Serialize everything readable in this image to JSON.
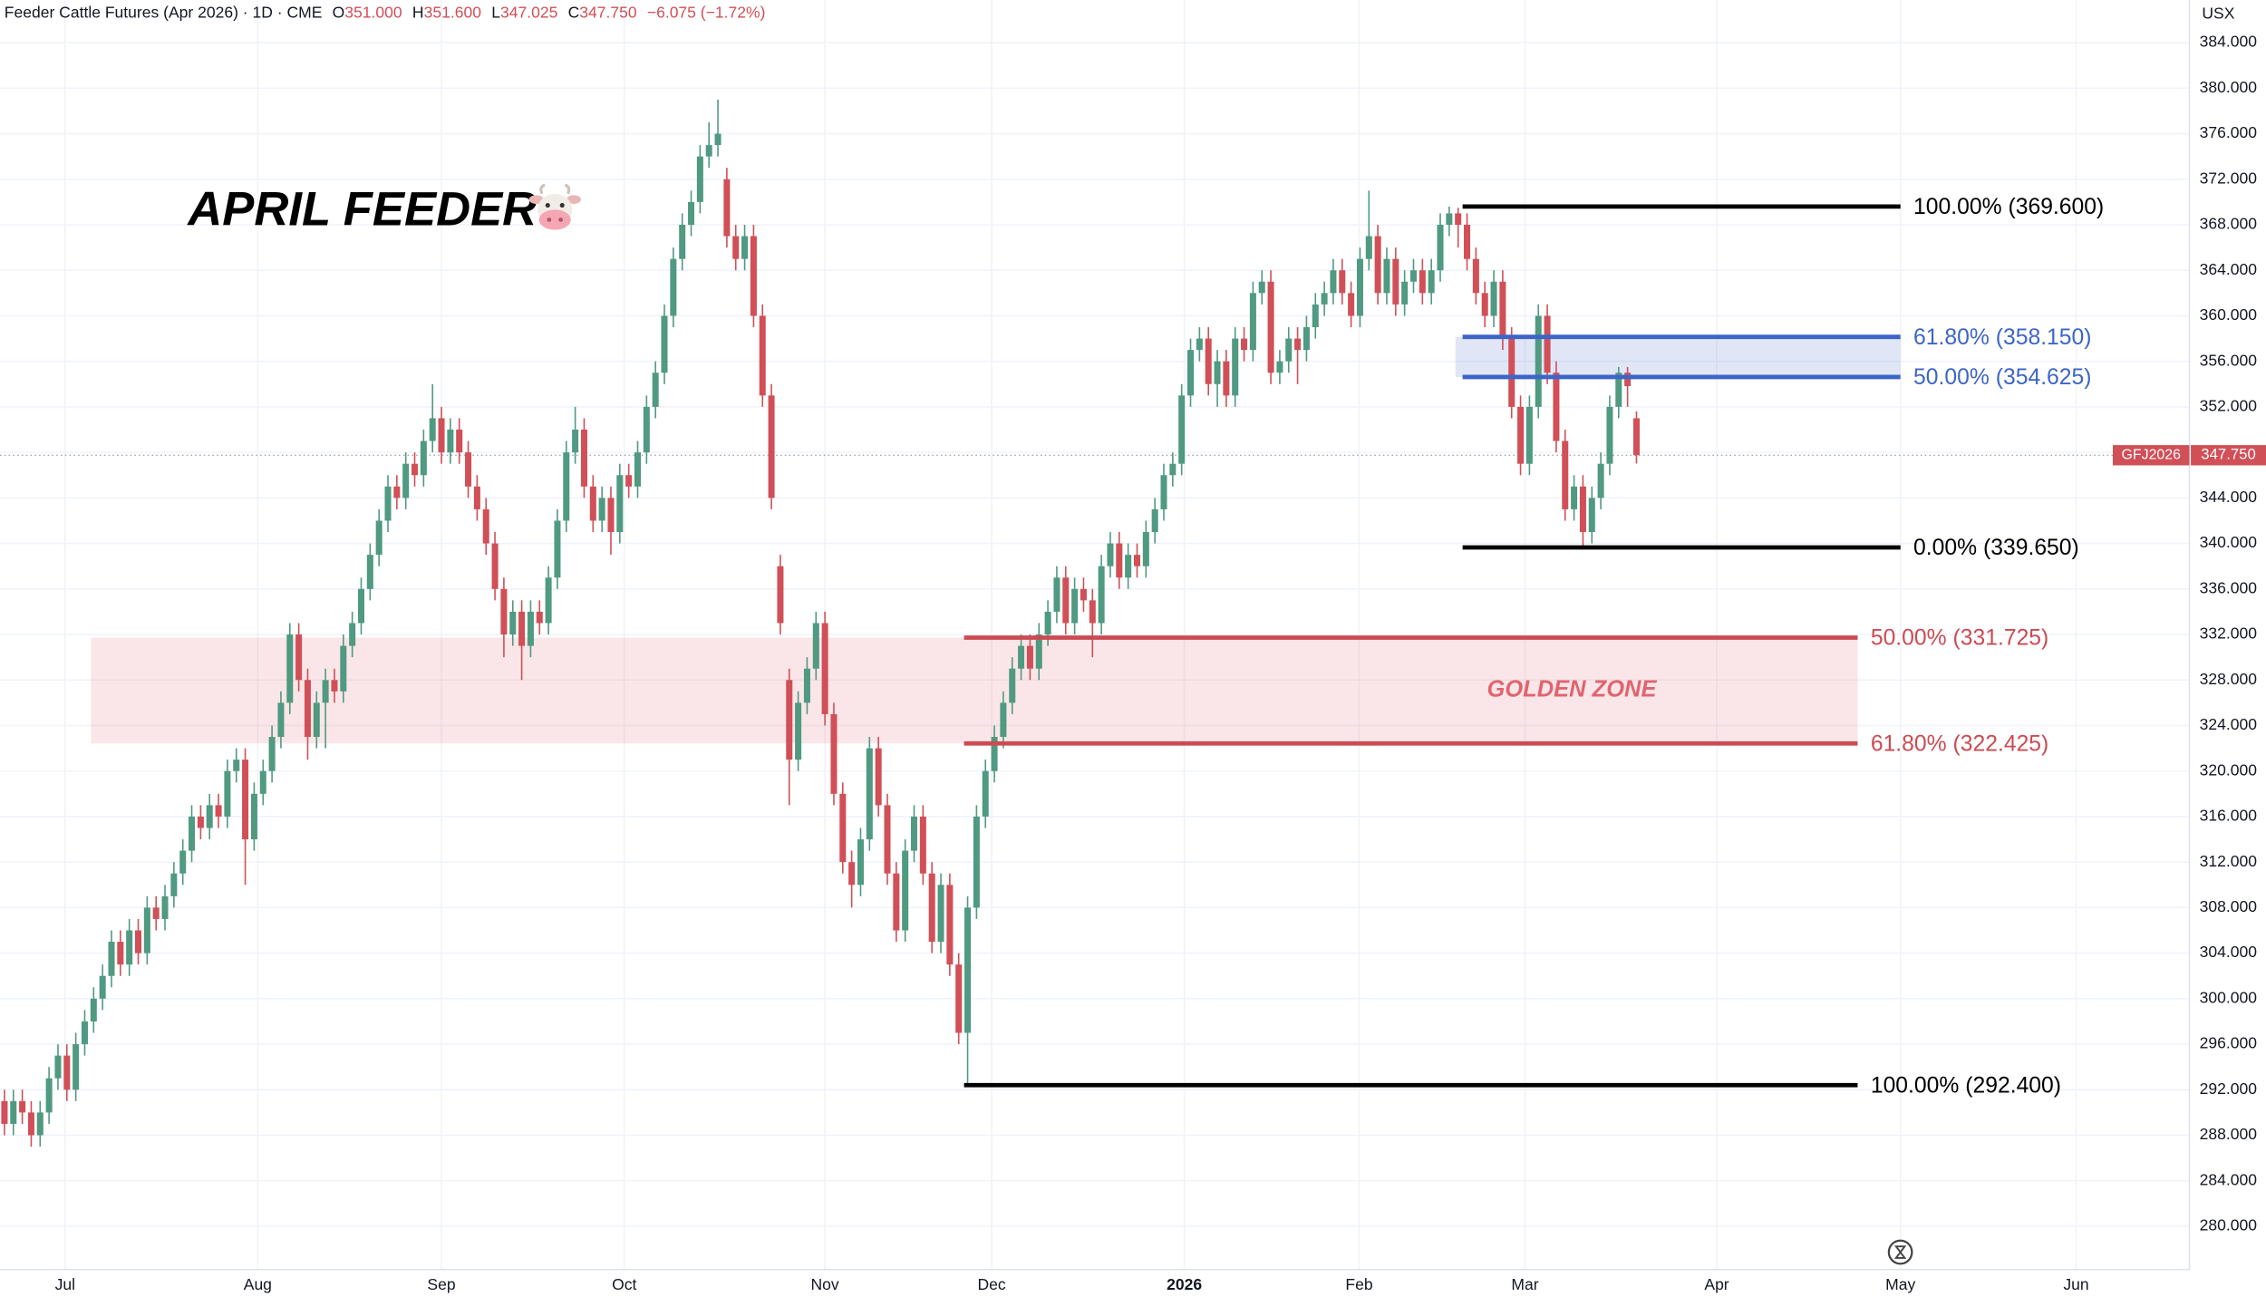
{
  "chart_data": {
    "type": "candlestick",
    "header": {
      "symbol": "Feeder Cattle Futures (Apr 2026) · 1D · CME",
      "fields": [
        {
          "key": "O",
          "value": "351.000"
        },
        {
          "key": "H",
          "value": "351.600"
        },
        {
          "key": "L",
          "value": "347.025"
        },
        {
          "key": "C",
          "value": "347.750"
        }
      ],
      "change": "−6.075 (−1.72%)"
    },
    "title": "APRIL FEEDER",
    "unit": "USX",
    "up_color": "#4f9a80",
    "down_color": "#d14f57",
    "grid": true,
    "ylim": [
      276.2,
      387.75
    ],
    "yticks": [
      {
        "value": 280,
        "label": "280.000"
      },
      {
        "value": 284,
        "label": "284.000"
      },
      {
        "value": 288,
        "label": "288.000"
      },
      {
        "value": 292,
        "label": "292.000"
      },
      {
        "value": 296,
        "label": "296.000"
      },
      {
        "value": 300,
        "label": "300.000"
      },
      {
        "value": 304,
        "label": "304.000"
      },
      {
        "value": 308,
        "label": "308.000"
      },
      {
        "value": 312,
        "label": "312.000"
      },
      {
        "value": 316,
        "label": "316.000"
      },
      {
        "value": 320,
        "label": "320.000"
      },
      {
        "value": 324,
        "label": "324.000"
      },
      {
        "value": 328,
        "label": "328.000"
      },
      {
        "value": 332,
        "label": "332.000"
      },
      {
        "value": 336,
        "label": "336.000"
      },
      {
        "value": 340,
        "label": "340.000"
      },
      {
        "value": 344,
        "label": "344.000"
      },
      {
        "value": 348,
        "label": "348.000"
      },
      {
        "value": 352,
        "label": "352.000"
      },
      {
        "value": 356,
        "label": "356.000"
      },
      {
        "value": 360,
        "label": "360.000"
      },
      {
        "value": 364,
        "label": "364.000"
      },
      {
        "value": 368,
        "label": "368.000"
      },
      {
        "value": 372,
        "label": "372.000"
      },
      {
        "value": 376,
        "label": "376.000"
      },
      {
        "value": 380,
        "label": "380.000"
      },
      {
        "value": 384,
        "label": "384.000"
      }
    ],
    "xlim": [
      -0.5,
      245
    ],
    "xticks": [
      {
        "value": 6.8,
        "label": "Jul"
      },
      {
        "value": 28.4,
        "label": "Aug"
      },
      {
        "value": 49,
        "label": "Sep"
      },
      {
        "value": 69.5,
        "label": "Oct"
      },
      {
        "value": 92,
        "label": "Nov"
      },
      {
        "value": 110.7,
        "label": "Dec"
      },
      {
        "value": 132.3,
        "label": "2026"
      },
      {
        "value": 151.9,
        "label": "Feb"
      },
      {
        "value": 170.5,
        "label": "Mar"
      },
      {
        "value": 192,
        "label": "Apr"
      },
      {
        "value": 212.6,
        "label": "May"
      },
      {
        "value": 232.3,
        "label": "Jun"
      }
    ],
    "last_price": {
      "symbol": "GFJ2026",
      "value": 347.75,
      "label": "347.750",
      "color": "#d14f57"
    },
    "fib_sets": [
      {
        "x_start": 163.5,
        "x_end": 212.6,
        "zone": {
          "x_start": 162.7,
          "x_end": 212.6,
          "color": "#3d65c8"
        },
        "levels": [
          {
            "value": 369.6,
            "label": "100.00% (369.600)",
            "color": "#000000"
          },
          {
            "value": 358.15,
            "label": "61.80% (358.150)",
            "color": "#3d65c8"
          },
          {
            "value": 354.625,
            "label": "50.00% (354.625)",
            "color": "#3d65c8"
          },
          {
            "value": 339.65,
            "label": "0.00% (339.650)",
            "color": "#000000"
          }
        ]
      },
      {
        "x_start": 107.6,
        "x_end": 207.8,
        "zone": {
          "x_start": 9.7,
          "x_end": 207.8,
          "color": "#e06470",
          "label": "GOLDEN ZONE"
        },
        "levels": [
          {
            "value": 331.725,
            "label": "50.00% (331.725)",
            "color": "#cc4b52"
          },
          {
            "value": 322.425,
            "label": "61.80% (322.425)",
            "color": "#cc4b52"
          },
          {
            "value": 292.4,
            "label": "100.00% (292.400)",
            "color": "#000000"
          }
        ]
      }
    ],
    "candles": [
      [
        291,
        292,
        288,
        289
      ],
      [
        289,
        292,
        288,
        291
      ],
      [
        291,
        292,
        289,
        290
      ],
      [
        290,
        291,
        287,
        288
      ],
      [
        288,
        291,
        287,
        290
      ],
      [
        290,
        294,
        289,
        293
      ],
      [
        293,
        296,
        292,
        295
      ],
      [
        295,
        296,
        291,
        292
      ],
      [
        292,
        297,
        291,
        296
      ],
      [
        296,
        299,
        295,
        298
      ],
      [
        298,
        301,
        297,
        300
      ],
      [
        300,
        303,
        299,
        302
      ],
      [
        302,
        306,
        301,
        305
      ],
      [
        305,
        306,
        302,
        303
      ],
      [
        303,
        307,
        302,
        306
      ],
      [
        306,
        307,
        303,
        304
      ],
      [
        304,
        309,
        303,
        308
      ],
      [
        308,
        309,
        306,
        307
      ],
      [
        307,
        310,
        306,
        309
      ],
      [
        309,
        312,
        308,
        311
      ],
      [
        311,
        314,
        310,
        313
      ],
      [
        313,
        317,
        312,
        316
      ],
      [
        316,
        317,
        314,
        315
      ],
      [
        315,
        318,
        314,
        317
      ],
      [
        317,
        318,
        315,
        316
      ],
      [
        316,
        321,
        315,
        320
      ],
      [
        320,
        322,
        319,
        321
      ],
      [
        321,
        322,
        310,
        314
      ],
      [
        314,
        319,
        313,
        318
      ],
      [
        318,
        321,
        317,
        320
      ],
      [
        320,
        324,
        319,
        323
      ],
      [
        323,
        327,
        322,
        326
      ],
      [
        326,
        333,
        325,
        332
      ],
      [
        332,
        333,
        327,
        328
      ],
      [
        328,
        329,
        321,
        323
      ],
      [
        323,
        327,
        322,
        326
      ],
      [
        326,
        329,
        322,
        328
      ],
      [
        328,
        329,
        326,
        327
      ],
      [
        327,
        332,
        326,
        331
      ],
      [
        331,
        334,
        330,
        333
      ],
      [
        333,
        337,
        332,
        336
      ],
      [
        336,
        340,
        335,
        339
      ],
      [
        339,
        343,
        338,
        342
      ],
      [
        342,
        346,
        341,
        345
      ],
      [
        345,
        346,
        343,
        344
      ],
      [
        344,
        348,
        343,
        347
      ],
      [
        347,
        348,
        345,
        346
      ],
      [
        346,
        350,
        345,
        349
      ],
      [
        349,
        354,
        348,
        351
      ],
      [
        351,
        352,
        347,
        348
      ],
      [
        348,
        351,
        347,
        350
      ],
      [
        350,
        351,
        347,
        348
      ],
      [
        348,
        349,
        344,
        345
      ],
      [
        345,
        346,
        342,
        343
      ],
      [
        343,
        344,
        339,
        340
      ],
      [
        340,
        341,
        335,
        336
      ],
      [
        336,
        337,
        330,
        332
      ],
      [
        332,
        335,
        331,
        334
      ],
      [
        334,
        335,
        328,
        331
      ],
      [
        331,
        335,
        330,
        334
      ],
      [
        334,
        335,
        332,
        333
      ],
      [
        333,
        338,
        332,
        337
      ],
      [
        337,
        343,
        336,
        342
      ],
      [
        342,
        349,
        341,
        348
      ],
      [
        348,
        352,
        347,
        350
      ],
      [
        350,
        351,
        344,
        345
      ],
      [
        345,
        346,
        341,
        342
      ],
      [
        342,
        345,
        341,
        344
      ],
      [
        344,
        345,
        339,
        341
      ],
      [
        341,
        347,
        340,
        346
      ],
      [
        346,
        347,
        344,
        345
      ],
      [
        345,
        349,
        344,
        348
      ],
      [
        348,
        353,
        347,
        352
      ],
      [
        352,
        356,
        351,
        355
      ],
      [
        355,
        361,
        354,
        360
      ],
      [
        360,
        366,
        359,
        365
      ],
      [
        365,
        369,
        364,
        368
      ],
      [
        368,
        371,
        367,
        370
      ],
      [
        370,
        375,
        369,
        374
      ],
      [
        374,
        377,
        373,
        375
      ],
      [
        375,
        379,
        374,
        376
      ],
      [
        372,
        373,
        366,
        367
      ],
      [
        367,
        368,
        364,
        365
      ],
      [
        365,
        368,
        364,
        367
      ],
      [
        367,
        368,
        359,
        360
      ],
      [
        360,
        361,
        352,
        353
      ],
      [
        353,
        354,
        343,
        344
      ],
      [
        338,
        339,
        332,
        333
      ],
      [
        328,
        329,
        317,
        321
      ],
      [
        321,
        327,
        320,
        326
      ],
      [
        326,
        330,
        325,
        329
      ],
      [
        329,
        334,
        328,
        333
      ],
      [
        333,
        334,
        324,
        325
      ],
      [
        325,
        326,
        317,
        318
      ],
      [
        318,
        319,
        311,
        312
      ],
      [
        312,
        313,
        308,
        310
      ],
      [
        310,
        315,
        309,
        314
      ],
      [
        314,
        323,
        313,
        322
      ],
      [
        322,
        323,
        316,
        317
      ],
      [
        317,
        318,
        310,
        311
      ],
      [
        311,
        312,
        305,
        306
      ],
      [
        306,
        314,
        305,
        313
      ],
      [
        313,
        317,
        312,
        316
      ],
      [
        316,
        317,
        310,
        311
      ],
      [
        311,
        312,
        304,
        305
      ],
      [
        305,
        311,
        304,
        310
      ],
      [
        310,
        311,
        302,
        303
      ],
      [
        303,
        304,
        296,
        297
      ],
      [
        297,
        309,
        292.4,
        308
      ],
      [
        308,
        317,
        307,
        316
      ],
      [
        316,
        321,
        315,
        320
      ],
      [
        320,
        324,
        319,
        323
      ],
      [
        323,
        327,
        322,
        326
      ],
      [
        326,
        330,
        325,
        329
      ],
      [
        329,
        332,
        328,
        331
      ],
      [
        331,
        332,
        328,
        329
      ],
      [
        329,
        333,
        328,
        332
      ],
      [
        332,
        335,
        331,
        334
      ],
      [
        334,
        338,
        333,
        337
      ],
      [
        337,
        338,
        332,
        333
      ],
      [
        333,
        337,
        332,
        336
      ],
      [
        336,
        337,
        334,
        335
      ],
      [
        335,
        336,
        330,
        333
      ],
      [
        333,
        339,
        332,
        338
      ],
      [
        338,
        341,
        337,
        340
      ],
      [
        340,
        341,
        336,
        337
      ],
      [
        337,
        340,
        336,
        339
      ],
      [
        339,
        340,
        337,
        338
      ],
      [
        338,
        342,
        337,
        341
      ],
      [
        341,
        344,
        340,
        343
      ],
      [
        343,
        347,
        342,
        346
      ],
      [
        346,
        348,
        345,
        347
      ],
      [
        347,
        354,
        346,
        353
      ],
      [
        353,
        358,
        352,
        357
      ],
      [
        357,
        359,
        356,
        358
      ],
      [
        358,
        359,
        353,
        354
      ],
      [
        354,
        357,
        352,
        356
      ],
      [
        356,
        357,
        352,
        353
      ],
      [
        353,
        359,
        352,
        358
      ],
      [
        358,
        359,
        356,
        357
      ],
      [
        357,
        363,
        356,
        362
      ],
      [
        362,
        364,
        361,
        363
      ],
      [
        363,
        364,
        354,
        355
      ],
      [
        355,
        357,
        354,
        356
      ],
      [
        356,
        359,
        355,
        358
      ],
      [
        358,
        359,
        354,
        357
      ],
      [
        357,
        360,
        356,
        359
      ],
      [
        359,
        362,
        358,
        361
      ],
      [
        361,
        363,
        360,
        362
      ],
      [
        362,
        365,
        361,
        364
      ],
      [
        364,
        365,
        361,
        362
      ],
      [
        362,
        363,
        359,
        360
      ],
      [
        360,
        366,
        359,
        365
      ],
      [
        365,
        371,
        364,
        367
      ],
      [
        367,
        368,
        361,
        362
      ],
      [
        362,
        366,
        361,
        365
      ],
      [
        365,
        366,
        360,
        361
      ],
      [
        361,
        364,
        360,
        363
      ],
      [
        363,
        365,
        362,
        364
      ],
      [
        364,
        365,
        361,
        362
      ],
      [
        362,
        365,
        361,
        364
      ],
      [
        364,
        369,
        363,
        368
      ],
      [
        368,
        369.6,
        367,
        369
      ],
      [
        369,
        369.5,
        366,
        368
      ],
      [
        368,
        369,
        364,
        365
      ],
      [
        365,
        366,
        361,
        362
      ],
      [
        362,
        363,
        359,
        360
      ],
      [
        360,
        364,
        359,
        363
      ],
      [
        363,
        364,
        357,
        358
      ],
      [
        358,
        359,
        351,
        352
      ],
      [
        352,
        353,
        346,
        347
      ],
      [
        347,
        353,
        346,
        352
      ],
      [
        352,
        361,
        351,
        360
      ],
      [
        360,
        361,
        354,
        355
      ],
      [
        355,
        356,
        348,
        349
      ],
      [
        349,
        350,
        342,
        343
      ],
      [
        343,
        346,
        342,
        345
      ],
      [
        345,
        346,
        339.65,
        341
      ],
      [
        341,
        345,
        340,
        344
      ],
      [
        344,
        348,
        343,
        347
      ],
      [
        347,
        353,
        346,
        352
      ],
      [
        352,
        355.5,
        351,
        355
      ],
      [
        355,
        355.5,
        352,
        353.825
      ],
      [
        351,
        351.6,
        347.025,
        347.75
      ]
    ]
  }
}
